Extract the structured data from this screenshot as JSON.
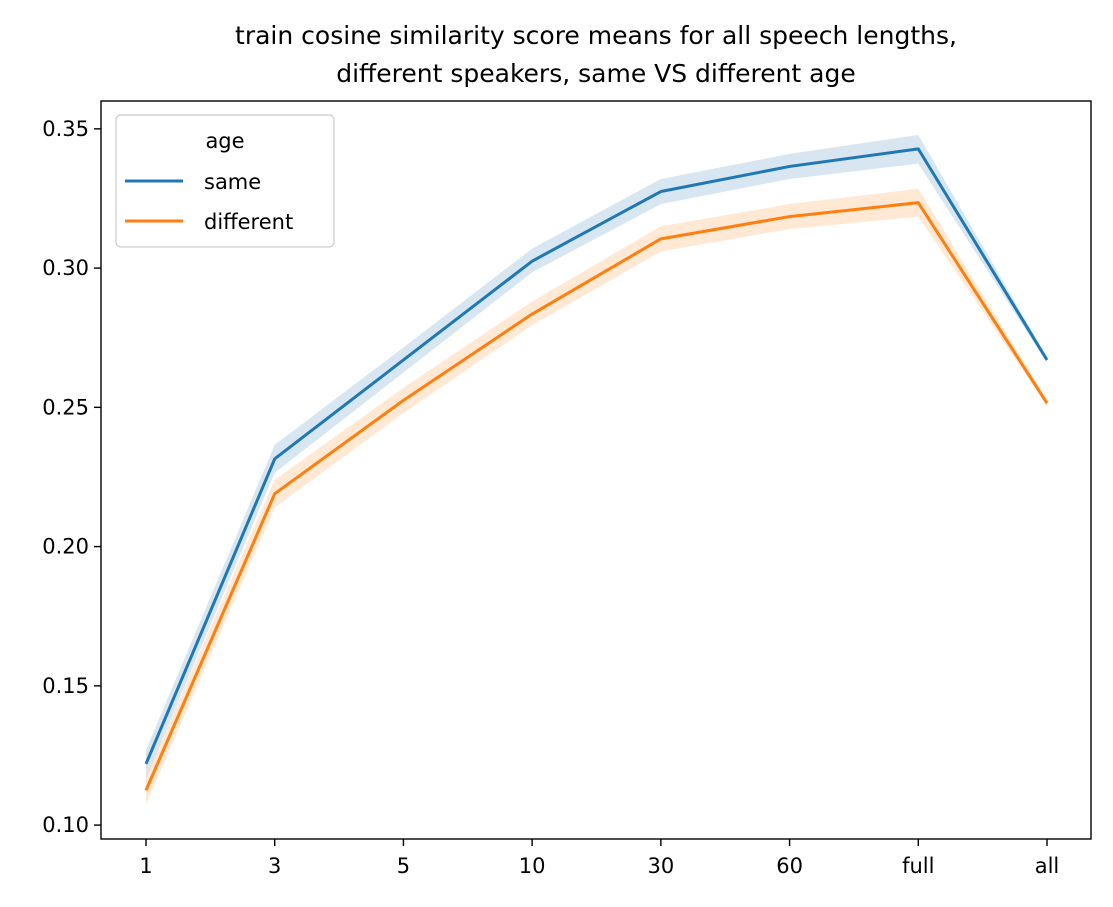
{
  "chart_data": {
    "type": "line",
    "title_lines": [
      "train cosine similarity score means for all speech lengths,",
      "different speakers, same VS different age"
    ],
    "xlabel": "",
    "ylabel": "",
    "categories": [
      "1",
      "3",
      "5",
      "10",
      "30",
      "60",
      "full",
      "all"
    ],
    "ylim": [
      0.095,
      0.36
    ],
    "yticks": [
      0.1,
      0.15,
      0.2,
      0.25,
      0.3,
      0.35
    ],
    "ytick_labels": [
      "0.10",
      "0.15",
      "0.20",
      "0.25",
      "0.30",
      "0.35"
    ],
    "grid": false,
    "legend": {
      "title": "age",
      "placement": "top-left"
    },
    "series": [
      {
        "name": "same",
        "color": "#1f77b4",
        "values": [
          0.122,
          0.2315,
          0.267,
          0.3025,
          0.3275,
          0.3365,
          0.3428,
          0.267
        ],
        "ci_low": [
          0.117,
          0.2265,
          0.2625,
          0.2985,
          0.323,
          0.332,
          0.3375,
          0.266
        ],
        "ci_high": [
          0.127,
          0.2365,
          0.2715,
          0.307,
          0.332,
          0.341,
          0.3478,
          0.268
        ]
      },
      {
        "name": "different",
        "color": "#ff7f0e",
        "values": [
          0.1125,
          0.219,
          0.2525,
          0.2835,
          0.3105,
          0.3185,
          0.3235,
          0.2515
        ],
        "ci_low": [
          0.1075,
          0.214,
          0.248,
          0.2795,
          0.306,
          0.314,
          0.3185,
          0.2505
        ],
        "ci_high": [
          0.1175,
          0.224,
          0.257,
          0.288,
          0.315,
          0.323,
          0.3285,
          0.2525
        ]
      }
    ]
  }
}
